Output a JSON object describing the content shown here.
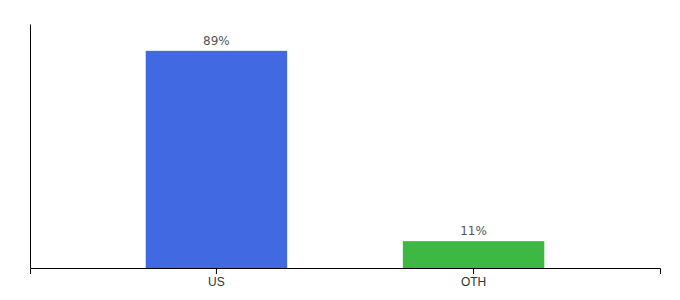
{
  "chart_data": {
    "type": "bar",
    "categories": [
      "US",
      "OTH"
    ],
    "values": [
      89,
      11
    ],
    "value_labels": [
      "89%",
      "11%"
    ],
    "colors": [
      "#4169e1",
      "#3cb843"
    ],
    "ylim": [
      0,
      100
    ],
    "data_labels": true,
    "tick_labels": "x"
  }
}
